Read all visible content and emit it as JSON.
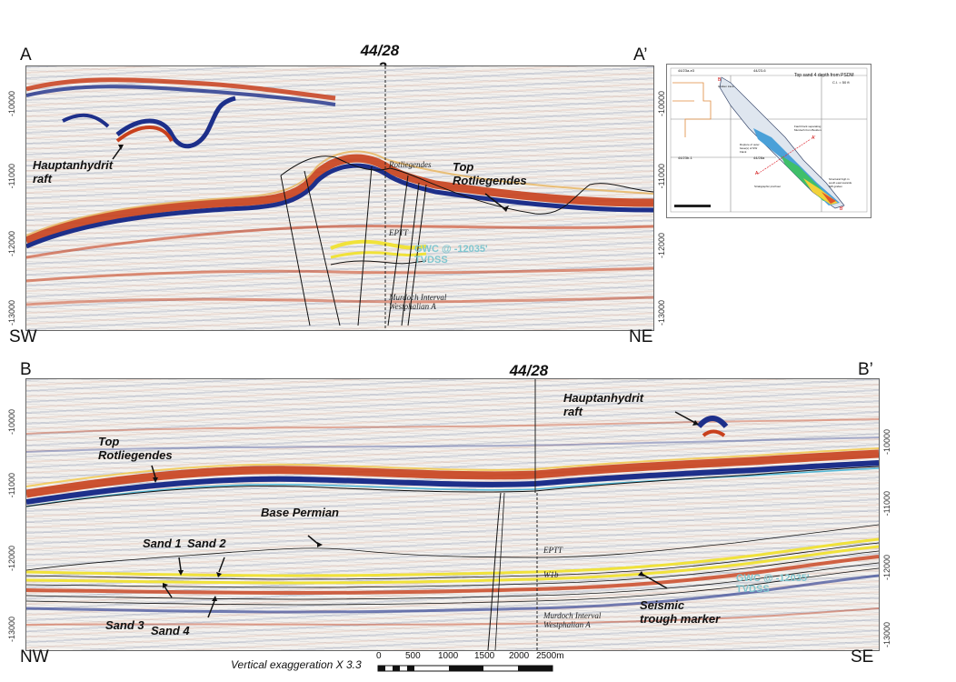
{
  "sectionA": {
    "left_label": "A",
    "right_label": "A’",
    "well_line1": "44/28",
    "well_line2": "-3",
    "bottom_left": "SW",
    "bottom_right": "NE",
    "annotations": {
      "hauptanhydrit": "Hauptanhydrit\nraft",
      "top_rotliegendes": "Top\nRotliegendes"
    },
    "picks": [
      "Rotliegendes",
      "EPTT",
      "Murdoch Interval",
      "Westphalian A"
    ],
    "gwc": "GWC @ -12035'\nTVDSS",
    "depth_ticks": [
      "-10000",
      "-11000",
      "-12000",
      "-13000"
    ],
    "depth_ticks_right": [
      "-10000",
      "-11000",
      "-12000",
      "-13000"
    ]
  },
  "inset_map": {
    "title": "Top sand 4 depth from PSDM",
    "ci": "C.I. = 50 ft",
    "blocks": [
      "44/23a-e3",
      "44/23-6",
      "44/23b-1",
      "44/28a"
    ],
    "labels": [
      "Graben trace",
      "Fault block separating\nMurdoch from Boulton",
      "Rupture of outer\nbase(s) of NW\nFlank",
      "Stratigraphic pinchout",
      "Structural high in\nsouth east towards\nSW graben"
    ],
    "marks": [
      "A",
      "A'",
      "B",
      "B'"
    ]
  },
  "sectionB": {
    "left_label": "B",
    "right_label": "B’",
    "well_line1": "44/28",
    "well_line2": "-3",
    "bottom_left": "NW",
    "bottom_right": "SE",
    "annotations": {
      "hauptanhydrit": "Hauptanhydrit\nraft",
      "top_rotliegendes": "Top\nRotliegendes",
      "base_permian": "Base Permian",
      "sand1": "Sand 1",
      "sand2": "Sand 2",
      "sand3": "Sand 3",
      "sand4": "Sand 4",
      "seismic_trough": "Seismic\ntrough marker"
    },
    "picks": [
      "EPTT",
      "W1b",
      "Murdoch Interval",
      "Westphalian A"
    ],
    "gwc": "GWC @ -12035'\nTVDSS",
    "depth_ticks": [
      "-10000",
      "-11000",
      "-12000",
      "-13000"
    ],
    "depth_ticks_right": [
      "-10000",
      "-11000",
      "-12000",
      "-13000"
    ]
  },
  "footer": {
    "vertical_exaggeration": "Vertical exaggeration X 3.3",
    "scale_labels": [
      "0",
      "500",
      "1000",
      "1500",
      "2000",
      "2500m"
    ]
  },
  "colors": {
    "peak_red": "#c8401c",
    "trough_blue": "#1d2f8a",
    "sand_yellow": "#f0e23a",
    "gwc_cyan": "#7fc6cf"
  }
}
